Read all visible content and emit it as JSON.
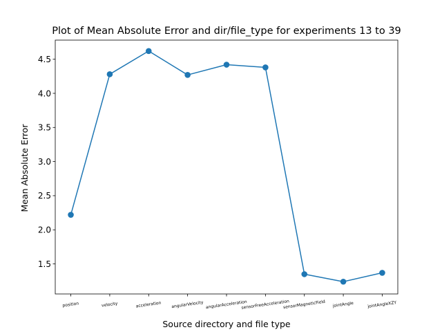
{
  "chart_data": {
    "type": "line",
    "title": "Plot of Mean Absolute Error and dir/file_type for experiments 13 to 39",
    "xlabel": "Source directory and file type",
    "ylabel": "Mean Absolute Error",
    "categories": [
      "position",
      "velocity",
      "acceleration",
      "angularVelocity",
      "angularAcceleration",
      "sensorFreeAcceleration",
      "sensorMagneticField",
      "jointAngle",
      "jointAngleXZY"
    ],
    "series": [
      {
        "values": [
          2.22,
          4.28,
          4.62,
          4.27,
          4.42,
          4.38,
          1.35,
          1.24,
          1.37
        ]
      }
    ],
    "ylim": [
      1.06,
      4.78
    ],
    "yticks": [
      "1.5",
      "2.0",
      "2.5",
      "3.0",
      "3.5",
      "4.0",
      "4.5"
    ],
    "grid": false,
    "color": "#1f77b4"
  }
}
